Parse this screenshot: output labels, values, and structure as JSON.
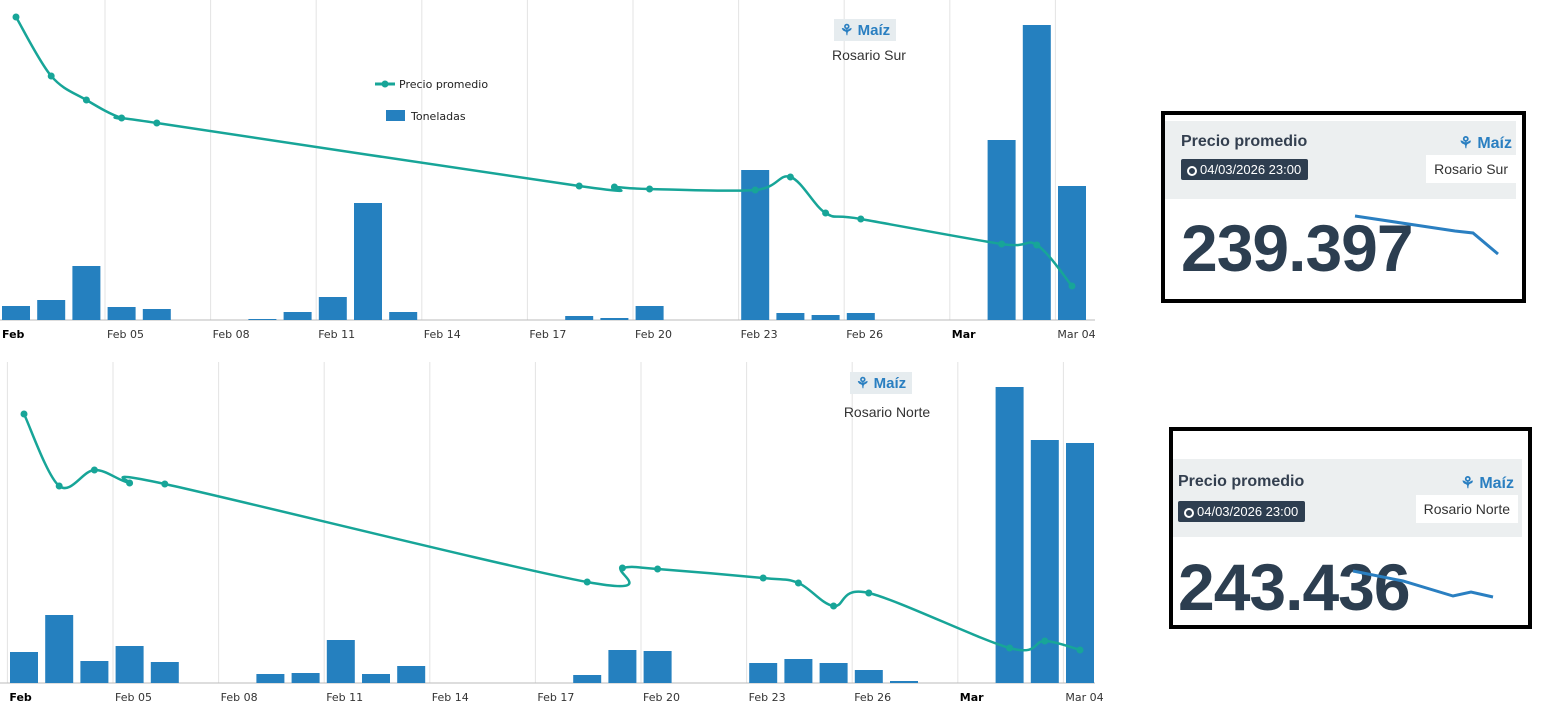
{
  "colors": {
    "price_line": "#17a598",
    "bars": "#2580bf",
    "sparkline": "#2a7fc1",
    "value_text": "#2c3e50"
  },
  "legend": {
    "price": "Precio promedio",
    "tons": "Toneladas"
  },
  "chart_data": [
    {
      "type": "bar+line",
      "crop": "Maíz",
      "location": "Rosario Sur",
      "x_ticks": [
        {
          "label": "Feb",
          "day": 0,
          "bold": true
        },
        {
          "label": "Feb 05",
          "day": 3
        },
        {
          "label": "Feb 08",
          "day": 6
        },
        {
          "label": "Feb 11",
          "day": 9
        },
        {
          "label": "Feb 14",
          "day": 12
        },
        {
          "label": "Feb 17",
          "day": 15
        },
        {
          "label": "Feb 20",
          "day": 18
        },
        {
          "label": "Feb 23",
          "day": 21
        },
        {
          "label": "Feb 26",
          "day": 24
        },
        {
          "label": "Mar",
          "day": 27,
          "bold": true
        },
        {
          "label": "Mar 04",
          "day": 30
        }
      ],
      "tons_ylim": [
        0,
        30
      ],
      "tons": [
        1.4,
        2.0,
        5.4,
        1.3,
        1.1,
        0,
        0,
        0.1,
        0.8,
        2.3,
        11.7,
        0.8,
        0,
        0,
        0,
        0,
        0.4,
        0.2,
        1.4,
        0,
        0,
        15.0,
        0.7,
        0.5,
        0.7,
        0,
        0,
        0,
        18.0,
        29.5,
        13.4
      ],
      "price_ylim": [
        236.0,
        268.0
      ],
      "price": [
        [
          0,
          266.3
        ],
        [
          1,
          260.4
        ],
        [
          2,
          258.0
        ],
        [
          3,
          256.2
        ],
        [
          4,
          255.7
        ],
        [
          16,
          249.4
        ],
        [
          17,
          249.3
        ],
        [
          18,
          249.1
        ],
        [
          21,
          249.0
        ],
        [
          22,
          250.3
        ],
        [
          23,
          246.7
        ],
        [
          24,
          246.1
        ],
        [
          28,
          243.6
        ],
        [
          29,
          243.5
        ],
        [
          30,
          239.4
        ]
      ],
      "show_legend": true
    },
    {
      "type": "bar+line",
      "crop": "Maíz",
      "location": "Rosario Norte",
      "x_ticks": [
        {
          "label": "Feb",
          "day": 0,
          "bold": true
        },
        {
          "label": "Feb 05",
          "day": 3
        },
        {
          "label": "Feb 08",
          "day": 6
        },
        {
          "label": "Feb 11",
          "day": 9
        },
        {
          "label": "Feb 14",
          "day": 12
        },
        {
          "label": "Feb 17",
          "day": 15
        },
        {
          "label": "Feb 20",
          "day": 18
        },
        {
          "label": "Feb 23",
          "day": 21
        },
        {
          "label": "Feb 26",
          "day": 24
        },
        {
          "label": "Mar",
          "day": 27,
          "bold": true
        },
        {
          "label": "Mar 04",
          "day": 30
        }
      ],
      "tons_ylim": [
        0,
        30
      ],
      "tons": [
        3.1,
        6.8,
        2.2,
        3.7,
        2.1,
        0,
        0,
        0.9,
        1.0,
        4.3,
        0.9,
        1.7,
        0,
        0,
        0,
        0,
        0.8,
        3.3,
        3.2,
        0,
        0,
        2.0,
        2.4,
        2.0,
        1.3,
        0.2,
        0,
        0,
        29.6,
        24.3,
        24.0
      ],
      "price_ylim": [
        240.1,
        272.1
      ],
      "price": [
        [
          0,
          267.0
        ],
        [
          1,
          259.8
        ],
        [
          2,
          261.4
        ],
        [
          3,
          260.1
        ],
        [
          4,
          260.0
        ],
        [
          16,
          250.2
        ],
        [
          17,
          251.6
        ],
        [
          18,
          251.5
        ],
        [
          21,
          250.6
        ],
        [
          22,
          250.1
        ],
        [
          23,
          247.8
        ],
        [
          24,
          249.1
        ],
        [
          28,
          243.6
        ],
        [
          29,
          244.3
        ],
        [
          30,
          243.4
        ]
      ],
      "show_legend": false
    }
  ],
  "cards": [
    {
      "title": "Precio promedio",
      "timestamp": "04/03/2026  23:00",
      "crop": "Maíz",
      "location": "Rosario Sur",
      "value": "239.397"
    },
    {
      "title": "Precio promedio",
      "timestamp": "04/03/2026  23:00",
      "crop": "Maíz",
      "location": "Rosario Norte",
      "value": "243.436"
    }
  ]
}
